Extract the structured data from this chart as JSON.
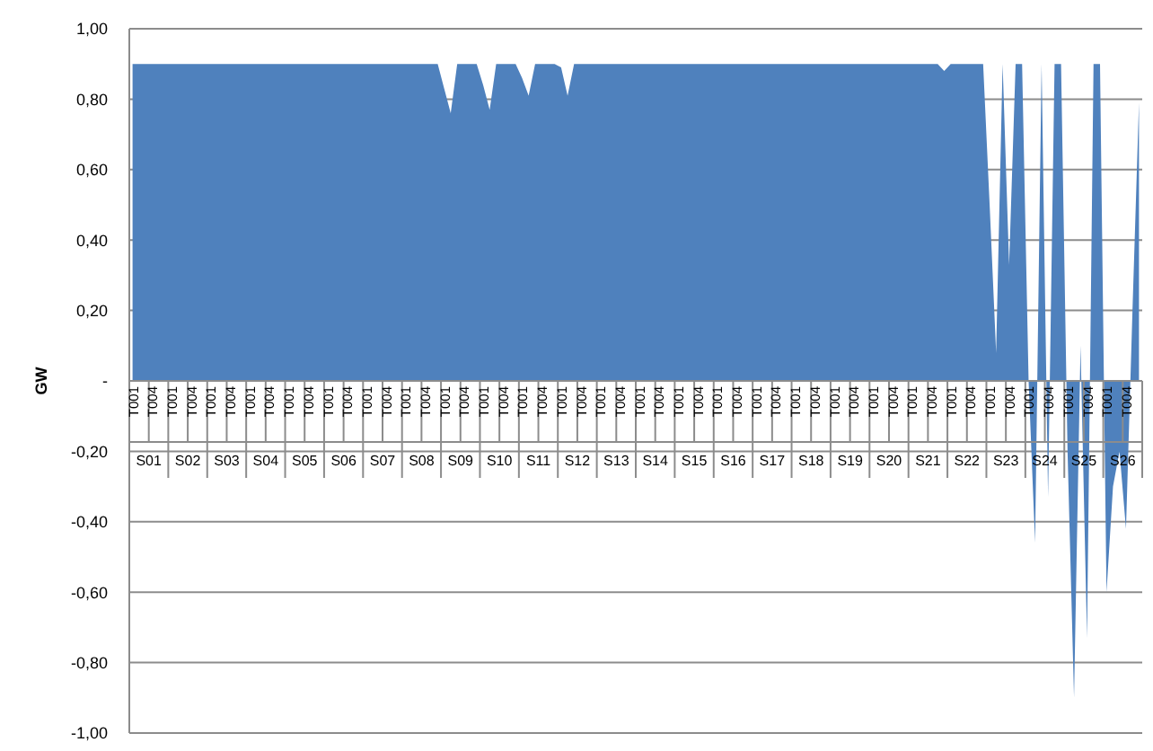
{
  "chart_data": {
    "type": "area",
    "ylabel": "GW",
    "categories": [
      "T001",
      null,
      null,
      "T004",
      null,
      null,
      "T001",
      null,
      null,
      "T004",
      null,
      null,
      "T001",
      null,
      null,
      "T004",
      null,
      null,
      "T001",
      null,
      null,
      "T004",
      null,
      null,
      "T001",
      null,
      null,
      "T004",
      null,
      null,
      "T001",
      null,
      null,
      "T004",
      null,
      null,
      "T001",
      null,
      null,
      "T004",
      null,
      null,
      "T001",
      null,
      null,
      "T004",
      null,
      null,
      "T001",
      null,
      null,
      "T004",
      null,
      null,
      "T001",
      null,
      null,
      "T004",
      null,
      null,
      "T001",
      null,
      null,
      "T004",
      null,
      null,
      "T001",
      null,
      null,
      "T004",
      null,
      null,
      "T001",
      null,
      null,
      "T004",
      null,
      null,
      "T001",
      null,
      null,
      "T004",
      null,
      null,
      "T001",
      null,
      null,
      "T004",
      null,
      null,
      "T001",
      null,
      null,
      "T004",
      null,
      null,
      "T001",
      null,
      null,
      "T004",
      null,
      null,
      "T001",
      null,
      null,
      "T004",
      null,
      null,
      "T001",
      null,
      null,
      "T004",
      null,
      null,
      "T001",
      null,
      null,
      "T004",
      null,
      null,
      "T001",
      null,
      null,
      "T004",
      null,
      null,
      "T001",
      null,
      null,
      "T004",
      null,
      null,
      "T001",
      null,
      null,
      "T004",
      null,
      null,
      "T001",
      null,
      null,
      "T004",
      null,
      null,
      "T001",
      null,
      null,
      "T004",
      null,
      null,
      "T001",
      null,
      null,
      "T004",
      null,
      null
    ],
    "series": [
      {
        "color": "#4f81bd",
        "values": [
          0.9,
          0.9,
          0.9,
          0.9,
          0.9,
          0.9,
          0.9,
          0.9,
          0.9,
          0.9,
          0.9,
          0.9,
          0.9,
          0.9,
          0.9,
          0.9,
          0.9,
          0.9,
          0.9,
          0.9,
          0.9,
          0.9,
          0.9,
          0.9,
          0.9,
          0.9,
          0.9,
          0.9,
          0.9,
          0.9,
          0.9,
          0.9,
          0.9,
          0.9,
          0.9,
          0.9,
          0.9,
          0.9,
          0.9,
          0.9,
          0.9,
          0.9,
          0.9,
          0.9,
          0.9,
          0.9,
          0.9,
          0.9,
          0.83,
          0.76,
          0.9,
          0.9,
          0.9,
          0.9,
          0.84,
          0.77,
          0.9,
          0.9,
          0.9,
          0.9,
          0.86,
          0.81,
          0.9,
          0.9,
          0.9,
          0.9,
          0.89,
          0.81,
          0.9,
          0.9,
          0.9,
          0.9,
          0.9,
          0.9,
          0.9,
          0.9,
          0.9,
          0.9,
          0.9,
          0.9,
          0.9,
          0.9,
          0.9,
          0.9,
          0.9,
          0.9,
          0.9,
          0.9,
          0.9,
          0.9,
          0.9,
          0.9,
          0.9,
          0.9,
          0.9,
          0.9,
          0.9,
          0.9,
          0.9,
          0.9,
          0.9,
          0.9,
          0.9,
          0.9,
          0.9,
          0.9,
          0.9,
          0.9,
          0.9,
          0.9,
          0.9,
          0.9,
          0.9,
          0.9,
          0.9,
          0.9,
          0.9,
          0.9,
          0.9,
          0.9,
          0.9,
          0.9,
          0.9,
          0.9,
          0.9,
          0.88,
          0.9,
          0.9,
          0.9,
          0.9,
          0.9,
          0.9,
          0.5,
          0.08,
          0.9,
          0.33,
          0.9,
          0.9,
          0,
          -0.46,
          0.9,
          -0.33,
          0.9,
          0.9,
          -0.2,
          -0.9,
          0.1,
          -0.73,
          0.9,
          0.9,
          -0.6,
          -0.3,
          -0.2,
          -0.42,
          0.2,
          0.79
        ]
      }
    ],
    "ylim": [
      -1,
      1
    ],
    "yticks": [
      {
        "value": -1,
        "label": "-1,00"
      },
      {
        "value": -0.8,
        "label": "-0,80"
      },
      {
        "value": -0.6,
        "label": "-0,60"
      },
      {
        "value": -0.4,
        "label": "-0,40"
      },
      {
        "value": -0.2,
        "label": "-0,20"
      },
      {
        "value": 0,
        "label": "-"
      },
      {
        "value": 0.2,
        "label": "0,20"
      },
      {
        "value": 0.4,
        "label": "0,40"
      },
      {
        "value": 0.6,
        "label": "0,60"
      },
      {
        "value": 0.8,
        "label": "0,80"
      },
      {
        "value": 1,
        "label": "1,00"
      }
    ],
    "grid": "y",
    "annotations": [
      {
        "text": "S01"
      },
      {
        "text": "S02"
      },
      {
        "text": "S03"
      },
      {
        "text": "S04"
      },
      {
        "text": "S05"
      },
      {
        "text": "S06"
      },
      {
        "text": "S07"
      },
      {
        "text": "S08"
      },
      {
        "text": "S09"
      },
      {
        "text": "S10"
      },
      {
        "text": "S11"
      },
      {
        "text": "S12"
      },
      {
        "text": "S13"
      },
      {
        "text": "S14"
      },
      {
        "text": "S15"
      },
      {
        "text": "S16"
      },
      {
        "text": "S17"
      },
      {
        "text": "S18"
      },
      {
        "text": "S19"
      },
      {
        "text": "S20"
      },
      {
        "text": "S21"
      },
      {
        "text": "S22"
      },
      {
        "text": "S23"
      },
      {
        "text": "S24"
      },
      {
        "text": "S25"
      },
      {
        "text": "S26"
      }
    ]
  }
}
